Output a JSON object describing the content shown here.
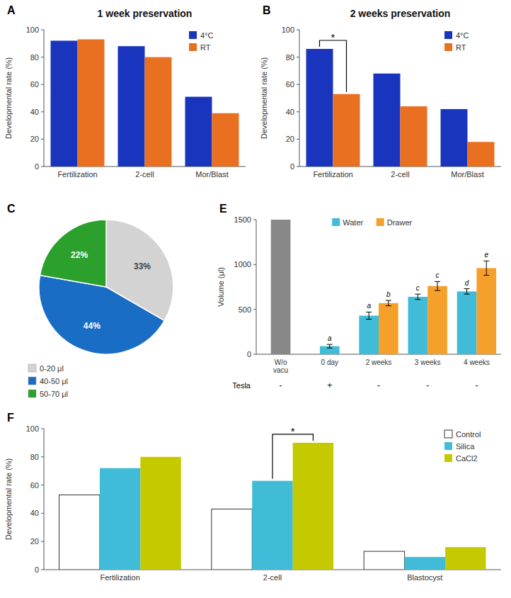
{
  "chart_data": [
    {
      "type": "bar",
      "panel_label": "A",
      "title": "1 week preservation",
      "categories": [
        "Fertilization",
        "2-cell",
        "Mor/Blast"
      ],
      "series": [
        {
          "name": "4°C",
          "color": "#1a35bd",
          "values": [
            92,
            88,
            51
          ]
        },
        {
          "name": "RT",
          "color": "#e87020",
          "values": [
            93,
            80,
            39
          ]
        }
      ],
      "ylabel": "Developmental rate (%)",
      "ylim": [
        0,
        100
      ],
      "yticks": [
        0,
        20,
        40,
        60,
        80,
        100
      ],
      "grid": false,
      "legend": "top-right"
    },
    {
      "type": "bar",
      "panel_label": "B",
      "title": "2 weeks preservation",
      "categories": [
        "Fertilization",
        "2-cell",
        "Mor/Blast"
      ],
      "series": [
        {
          "name": "4°C",
          "color": "#1a35bd",
          "values": [
            86,
            68,
            42
          ]
        },
        {
          "name": "RT",
          "color": "#e87020",
          "values": [
            53,
            44,
            18
          ]
        }
      ],
      "ylabel": "Developmental rate (%)",
      "ylim": [
        0,
        100
      ],
      "yticks": [
        0,
        20,
        40,
        60,
        80,
        100
      ],
      "grid": false,
      "legend": "top-right",
      "brackets": [
        {
          "category": "Fertilization",
          "between": [
            "4°C",
            "RT"
          ],
          "label": "*"
        }
      ]
    },
    {
      "type": "pie",
      "panel_label": "C",
      "categories": [
        "0-20 μl",
        "40-50 μl",
        "50-70 μl"
      ],
      "values": [
        33,
        44,
        22
      ],
      "value_labels": [
        "33%",
        "44%",
        "22%"
      ],
      "colors": [
        "#d3d3d3",
        "#1a6dc4",
        "#2ca02c"
      ],
      "label_colors": [
        "#444444",
        "#ffffff",
        "#ffffff"
      ],
      "data_labels": true,
      "legend": "bottom-left"
    },
    {
      "type": "bar",
      "panel_label": "E",
      "categories": [
        "W/o\nvacu",
        "0 day",
        "2 weeks",
        "3 weeks",
        "4 weeks"
      ],
      "series": [
        {
          "color": "#888888",
          "values": [
            1500,
            null,
            null,
            null,
            null
          ]
        },
        {
          "name": "Water",
          "color": "#40bcd8",
          "values": [
            null,
            90,
            430,
            640,
            700
          ],
          "errors": [
            null,
            20,
            40,
            30,
            30
          ],
          "letters": [
            null,
            "a",
            "a",
            "c",
            "d"
          ]
        },
        {
          "name": "Drawer",
          "color": "#f5a02a",
          "values": [
            null,
            null,
            570,
            760,
            960
          ],
          "errors": [
            null,
            null,
            30,
            50,
            80
          ],
          "letters": [
            null,
            null,
            "b",
            "c",
            "e"
          ]
        }
      ],
      "ylabel": "Volume (μl)",
      "ylim": [
        0,
        1500
      ],
      "yticks": [
        0,
        500,
        1000,
        1500
      ],
      "row_label": "Tesla",
      "row_values": [
        "-",
        "+",
        "-",
        "-",
        "-"
      ],
      "grid": false,
      "legend": "top"
    },
    {
      "type": "bar",
      "panel_label": "F",
      "categories": [
        "Fertilization",
        "2-cell",
        "Blastocyst"
      ],
      "series": [
        {
          "name": "Control",
          "color": "#ffffff",
          "values": [
            53,
            43,
            13
          ]
        },
        {
          "name": "Silica",
          "color": "#40bcd8",
          "values": [
            72,
            63,
            9
          ]
        },
        {
          "name": "CaCl2",
          "color": "#c5c900",
          "values": [
            80,
            90,
            16
          ]
        }
      ],
      "ylabel": "Developmental rate (%)",
      "ylim": [
        0,
        100
      ],
      "yticks": [
        0,
        20,
        40,
        60,
        80,
        100
      ],
      "grid": false,
      "legend": "top-right",
      "brackets": [
        {
          "category": "2-cell",
          "between": [
            "Silica",
            "CaCl2"
          ],
          "label": "*"
        }
      ]
    }
  ]
}
